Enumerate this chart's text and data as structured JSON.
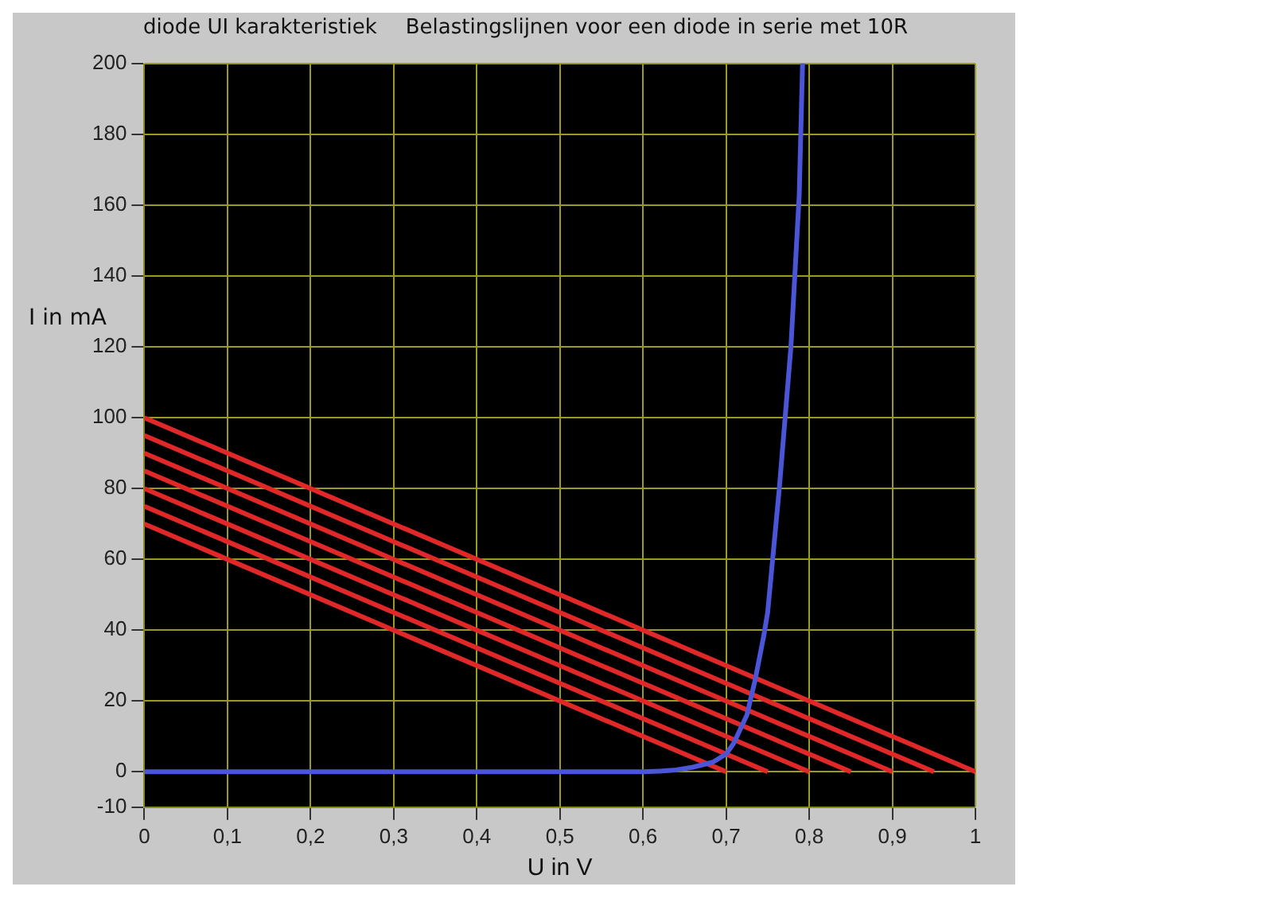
{
  "chart_data": {
    "type": "line",
    "title": "diode UI karakteristiek",
    "subtitle": "Belastingslijnen voor een diode in serie met 10R",
    "xlabel": "U in V",
    "ylabel": "I in mA",
    "series": [
      {
        "color": "#4a55d8",
        "x": [
          0,
          0.3,
          0.6,
          0.62,
          0.64,
          0.66,
          0.684,
          0.7,
          0.709,
          0.725,
          0.735,
          0.745,
          0.75,
          0.764,
          0.778,
          0.788,
          0.792
        ],
        "values": [
          0,
          0,
          0,
          0.2,
          0.5,
          1.3,
          2.7,
          5,
          8,
          16,
          26,
          38,
          45,
          80,
          120,
          163,
          200
        ]
      },
      {
        "color": "#e02828",
        "x": [
          0,
          1
        ],
        "values": [
          100,
          0
        ]
      },
      {
        "color": "#e02828",
        "x": [
          0,
          0.95
        ],
        "values": [
          95,
          0
        ]
      },
      {
        "color": "#e02828",
        "x": [
          0,
          0.9
        ],
        "values": [
          90,
          0
        ]
      },
      {
        "color": "#e02828",
        "x": [
          0,
          0.85
        ],
        "values": [
          85,
          0
        ]
      },
      {
        "color": "#e02828",
        "x": [
          0,
          0.8
        ],
        "values": [
          80,
          0
        ]
      },
      {
        "color": "#e02828",
        "x": [
          0,
          0.75
        ],
        "values": [
          75,
          0
        ]
      },
      {
        "color": "#e02828",
        "x": [
          0,
          0.7
        ],
        "values": [
          70,
          0
        ]
      }
    ],
    "xlim": [
      0,
      1
    ],
    "xticks": [
      0,
      {
        "value": 0.1,
        "label": "0,1"
      },
      {
        "value": 0.2,
        "label": "0,2"
      },
      {
        "value": 0.3,
        "label": "0,3"
      },
      {
        "value": 0.4,
        "label": "0,4"
      },
      {
        "value": 0.5,
        "label": "0,5"
      },
      {
        "value": 0.6,
        "label": "0,6"
      },
      {
        "value": 0.7,
        "label": "0,7"
      },
      {
        "value": 0.8,
        "label": "0,8"
      },
      {
        "value": 0.9,
        "label": "0,9"
      },
      1
    ],
    "ylim": [
      -10,
      200
    ],
    "yticks": [
      -10,
      0,
      20,
      40,
      60,
      80,
      100,
      120,
      140,
      160,
      180,
      200
    ],
    "grid": true,
    "legend": false,
    "marker": "none",
    "line_style": "solid"
  }
}
